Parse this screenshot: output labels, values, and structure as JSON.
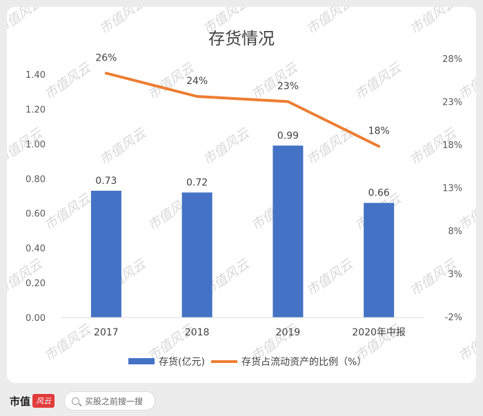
{
  "chart_data": {
    "type": "bar",
    "title": "存货情况",
    "categories": [
      "2017",
      "2018",
      "2019",
      "2020年中报"
    ],
    "series": [
      {
        "name": "存货(亿元)",
        "type": "bar",
        "axis": "left",
        "color": "#4472c4",
        "values": [
          0.73,
          0.72,
          0.99,
          0.66
        ],
        "labels": [
          "0.73",
          "0.72",
          "0.99",
          "0.66"
        ]
      },
      {
        "name": "存货占流动资产的比例（%）",
        "type": "line",
        "axis": "right",
        "color": "#ed7d31",
        "values": [
          26.3,
          23.6,
          23.0,
          17.8
        ],
        "labels": [
          "26%",
          "24%",
          "23%",
          "18%"
        ]
      }
    ],
    "y_left": {
      "min": 0,
      "max": 1.4,
      "ticks": [
        "0.00",
        "0.20",
        "0.40",
        "0.60",
        "0.80",
        "1.00",
        "1.20",
        "1.40"
      ]
    },
    "y_right": {
      "min": -2,
      "max": 28,
      "ticks": [
        "-2%",
        "3%",
        "8%",
        "13%",
        "18%",
        "23%",
        "28%"
      ]
    },
    "grid": false,
    "legend": "bottom"
  },
  "watermark": "市值风云",
  "footer": {
    "brand": "市值",
    "brand_badge": "风云",
    "search_placeholder": "买股之前搜一搜"
  }
}
